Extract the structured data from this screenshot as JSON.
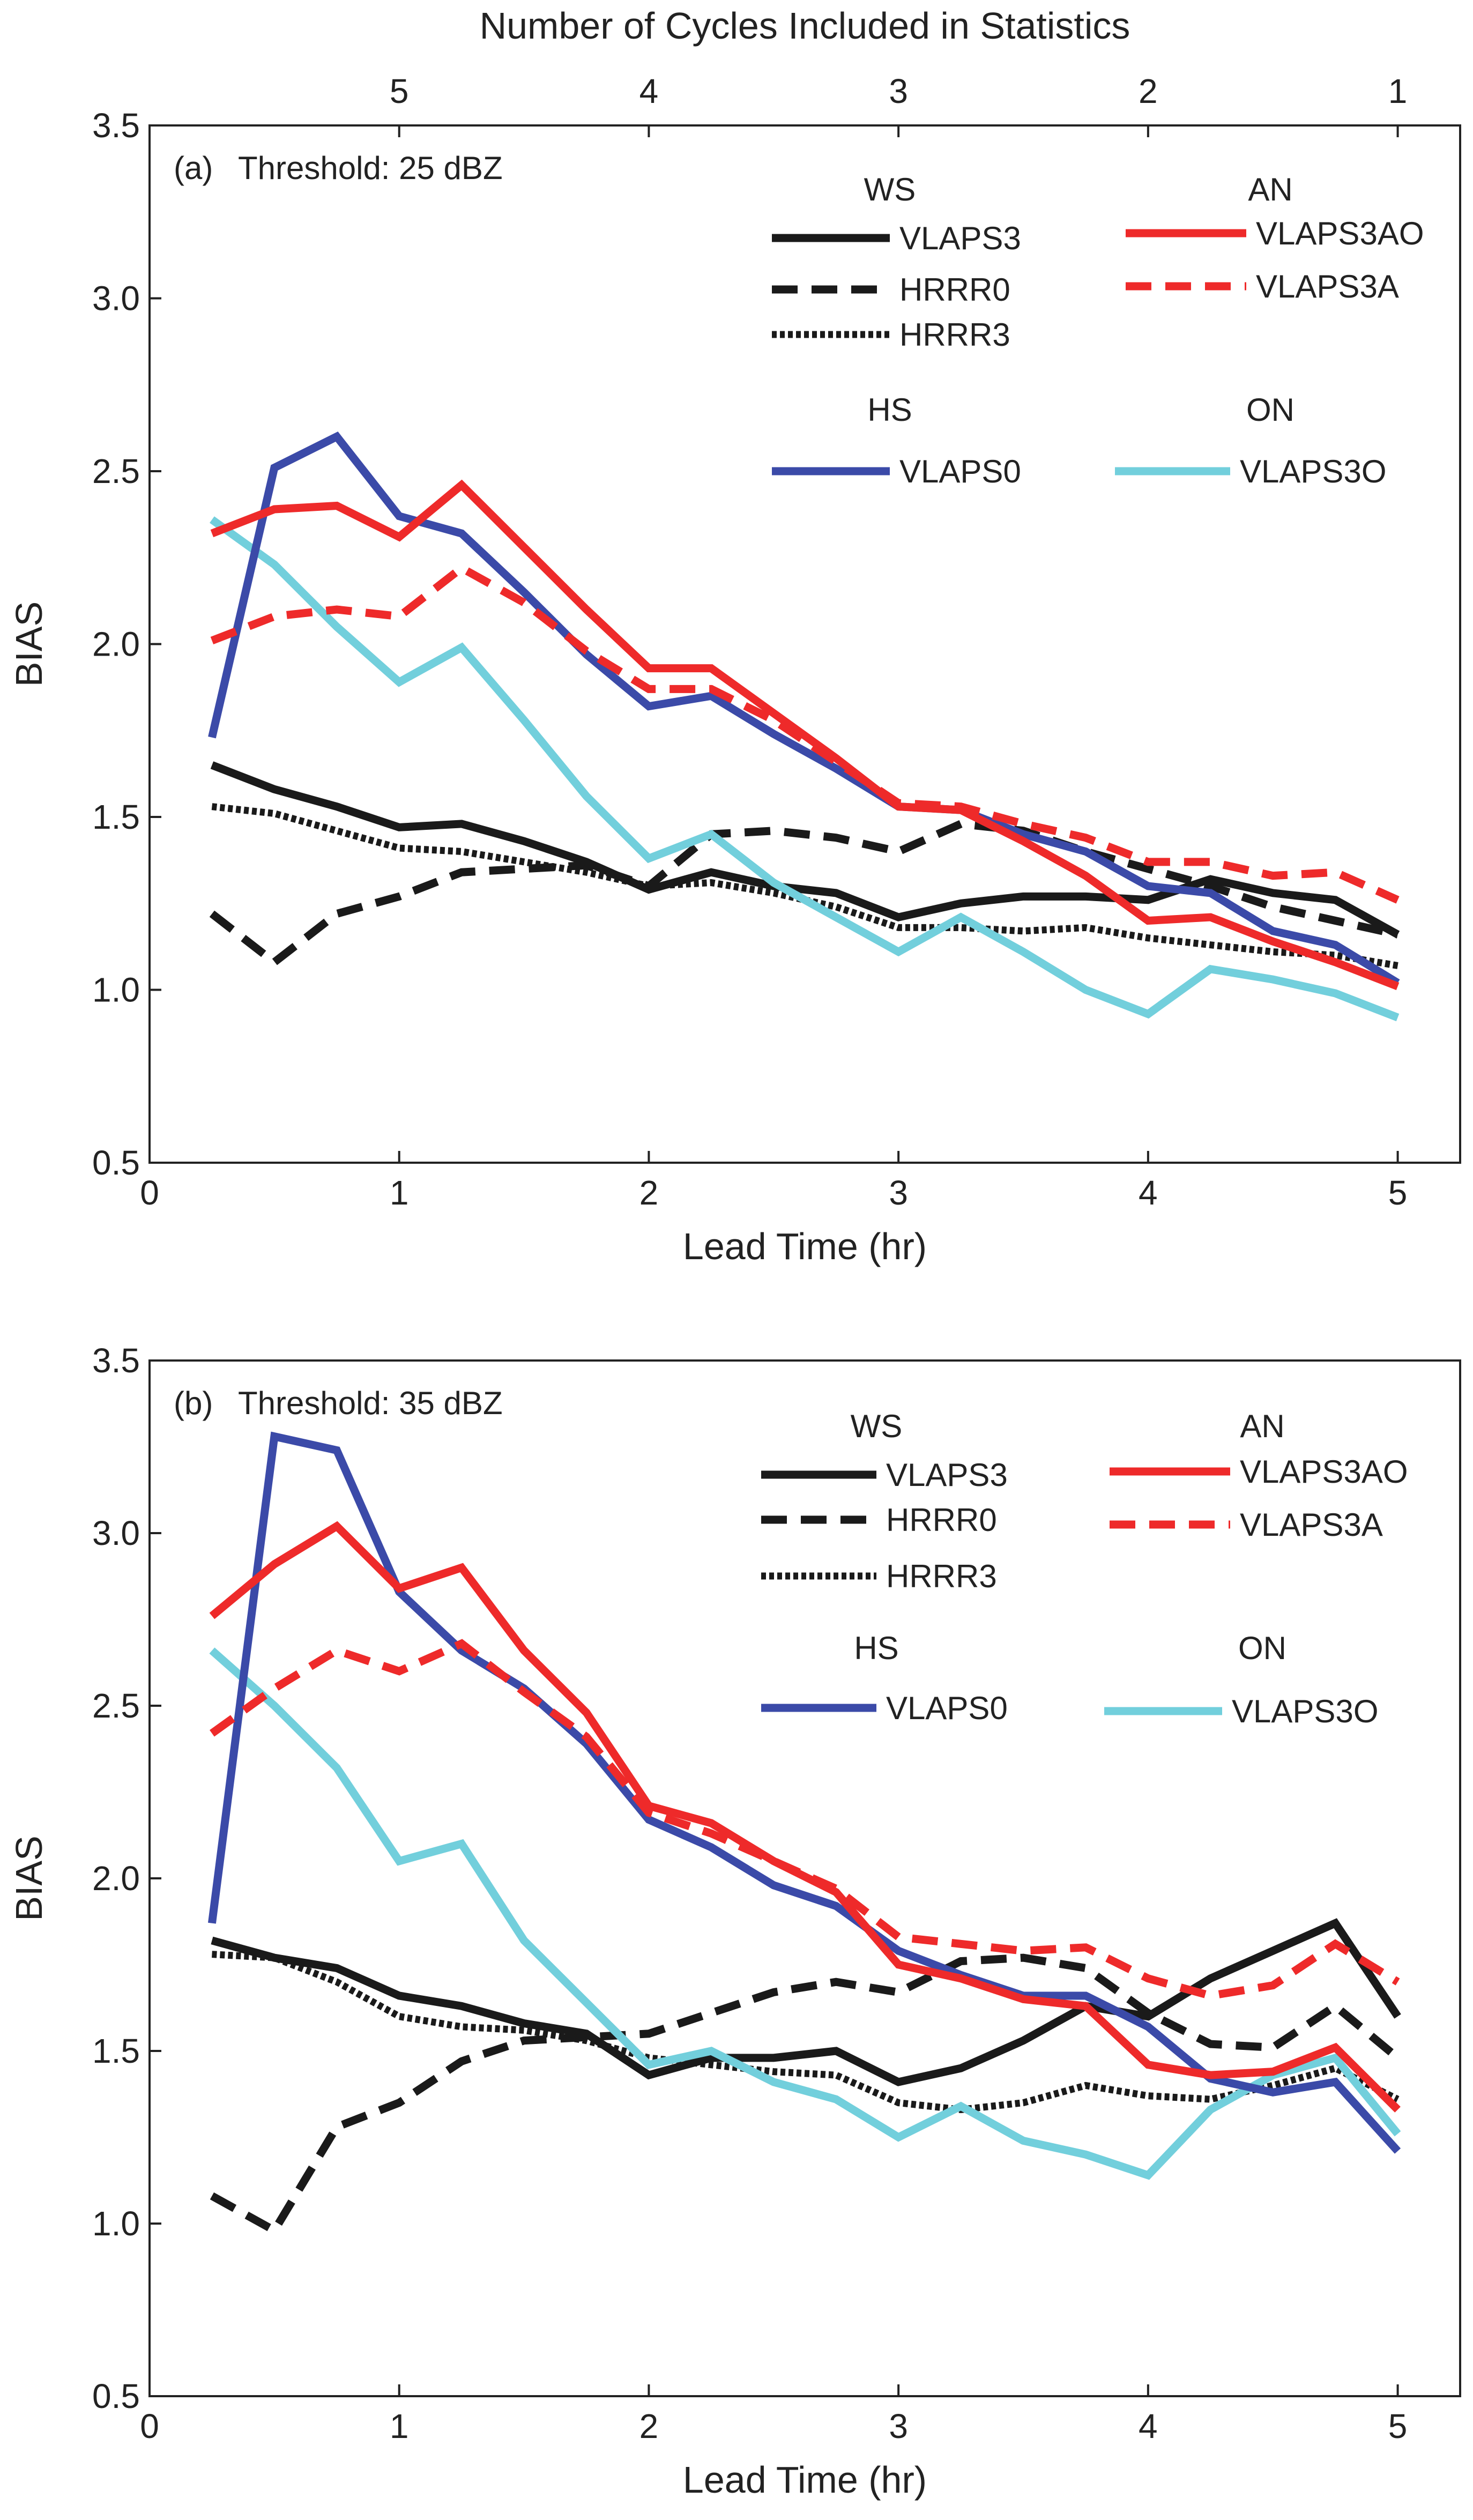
{
  "chart_data": [
    {
      "type": "line",
      "panel_label": "(a)",
      "title": "Threshold: 25 dBZ",
      "xlabel": "Lead Time (hr)",
      "ylabel": "BIAS",
      "top_xlabel": "Number of Cycles Included in Statistics",
      "top_ticks": [
        {
          "at": 1,
          "label": "5"
        },
        {
          "at": 2,
          "label": "4"
        },
        {
          "at": 3,
          "label": "3"
        },
        {
          "at": 4,
          "label": "2"
        },
        {
          "at": 5,
          "label": "1"
        }
      ],
      "xlim": [
        0,
        5.25
      ],
      "ylim": [
        0.5,
        3.5
      ],
      "xticks": [
        "0",
        "1",
        "2",
        "3",
        "4",
        "5"
      ],
      "yticks": [
        "0.5",
        "1.0",
        "1.5",
        "2.0",
        "2.5",
        "3.0",
        "3.5"
      ],
      "grid": false,
      "legend_groups": [
        "WS",
        "AN",
        "HS",
        "ON"
      ],
      "x": [
        0.25,
        0.5,
        0.75,
        1,
        1.25,
        1.5,
        1.75,
        2,
        2.25,
        2.5,
        2.75,
        3,
        3.25,
        3.5,
        3.75,
        4,
        4.25,
        4.5,
        4.75,
        5
      ],
      "series": [
        {
          "name": "VLAPS3",
          "group": "WS",
          "color": "#1a1a1a",
          "style": "solid",
          "values": [
            1.65,
            1.58,
            1.53,
            1.47,
            1.48,
            1.43,
            1.37,
            1.29,
            1.34,
            1.3,
            1.28,
            1.21,
            1.25,
            1.27,
            1.27,
            1.26,
            1.32,
            1.28,
            1.26,
            1.16
          ]
        },
        {
          "name": "HRRR0",
          "group": "WS",
          "color": "#1a1a1a",
          "style": "dashed",
          "values": [
            1.22,
            1.08,
            1.22,
            1.27,
            1.34,
            1.35,
            1.36,
            1.3,
            1.45,
            1.46,
            1.44,
            1.4,
            1.48,
            1.46,
            1.4,
            1.35,
            1.3,
            1.24,
            1.2,
            1.16
          ]
        },
        {
          "name": "HRRR3",
          "group": "WS",
          "color": "#1a1a1a",
          "style": "dotted",
          "values": [
            1.53,
            1.51,
            1.46,
            1.41,
            1.4,
            1.37,
            1.34,
            1.3,
            1.31,
            1.28,
            1.24,
            1.18,
            1.18,
            1.17,
            1.18,
            1.15,
            1.13,
            1.11,
            1.1,
            1.07
          ]
        },
        {
          "name": "VLAPS3AO",
          "group": "AN",
          "color": "#ee2a2a",
          "style": "solid",
          "values": [
            2.32,
            2.39,
            2.4,
            2.31,
            2.46,
            2.28,
            2.1,
            1.93,
            1.93,
            1.8,
            1.67,
            1.53,
            1.52,
            1.43,
            1.33,
            1.2,
            1.21,
            1.14,
            1.08,
            1.01
          ]
        },
        {
          "name": "VLAPS3A",
          "group": "AN",
          "color": "#ee2a2a",
          "style": "dashed",
          "values": [
            2.01,
            2.08,
            2.1,
            2.08,
            2.22,
            2.12,
            1.98,
            1.87,
            1.87,
            1.78,
            1.66,
            1.54,
            1.53,
            1.48,
            1.44,
            1.37,
            1.37,
            1.33,
            1.34,
            1.26
          ]
        },
        {
          "name": "VLAPS0",
          "group": "HS",
          "color": "#3b4aa8",
          "style": "solid",
          "values": [
            1.73,
            2.51,
            2.6,
            2.37,
            2.32,
            2.15,
            1.97,
            1.82,
            1.85,
            1.74,
            1.64,
            1.53,
            1.52,
            1.45,
            1.4,
            1.3,
            1.28,
            1.17,
            1.13,
            1.02
          ]
        },
        {
          "name": "VLAPS3O",
          "group": "ON",
          "color": "#72cfdc",
          "style": "solid",
          "values": [
            2.36,
            2.23,
            2.05,
            1.89,
            1.99,
            1.78,
            1.56,
            1.38,
            1.45,
            1.31,
            1.21,
            1.11,
            1.21,
            1.11,
            1.0,
            0.93,
            1.06,
            1.03,
            0.99,
            0.92
          ]
        }
      ]
    },
    {
      "type": "line",
      "panel_label": "(b)",
      "title": "Threshold: 35 dBZ",
      "xlabel": "Lead Time (hr)",
      "ylabel": "BIAS",
      "xlim": [
        0,
        5.25
      ],
      "ylim": [
        0.5,
        3.5
      ],
      "xticks": [
        "0",
        "1",
        "2",
        "3",
        "4",
        "5"
      ],
      "yticks": [
        "0.5",
        "1.0",
        "1.5",
        "2.0",
        "2.5",
        "3.0",
        "3.5"
      ],
      "grid": false,
      "legend_groups": [
        "WS",
        "AN",
        "HS",
        "ON"
      ],
      "x": [
        0.25,
        0.5,
        0.75,
        1,
        1.25,
        1.5,
        1.75,
        2,
        2.25,
        2.5,
        2.75,
        3,
        3.25,
        3.5,
        3.75,
        4,
        4.25,
        4.5,
        4.75,
        5
      ],
      "series": [
        {
          "name": "VLAPS3",
          "group": "WS",
          "color": "#1a1a1a",
          "style": "solid",
          "values": [
            1.82,
            1.77,
            1.74,
            1.66,
            1.63,
            1.58,
            1.55,
            1.43,
            1.48,
            1.48,
            1.5,
            1.41,
            1.45,
            1.53,
            1.63,
            1.6,
            1.71,
            1.79,
            1.87,
            1.6
          ]
        },
        {
          "name": "HRRR0",
          "group": "WS",
          "color": "#1a1a1a",
          "style": "dashed",
          "values": [
            1.08,
            0.98,
            1.28,
            1.35,
            1.47,
            1.53,
            1.54,
            1.55,
            1.61,
            1.67,
            1.7,
            1.67,
            1.76,
            1.77,
            1.74,
            1.61,
            1.52,
            1.51,
            1.63,
            1.48
          ]
        },
        {
          "name": "HRRR3",
          "group": "WS",
          "color": "#1a1a1a",
          "style": "dotted",
          "values": [
            1.78,
            1.77,
            1.7,
            1.6,
            1.57,
            1.56,
            1.53,
            1.48,
            1.46,
            1.44,
            1.43,
            1.35,
            1.33,
            1.35,
            1.4,
            1.37,
            1.36,
            1.4,
            1.45,
            1.36
          ]
        },
        {
          "name": "VLAPS3AO",
          "group": "AN",
          "color": "#ee2a2a",
          "style": "solid",
          "values": [
            2.76,
            2.91,
            3.02,
            2.84,
            2.9,
            2.66,
            2.48,
            2.21,
            2.16,
            2.05,
            1.96,
            1.75,
            1.71,
            1.65,
            1.63,
            1.46,
            1.43,
            1.44,
            1.51,
            1.33
          ]
        },
        {
          "name": "VLAPS3A",
          "group": "AN",
          "color": "#ee2a2a",
          "style": "dashed",
          "values": [
            2.42,
            2.55,
            2.66,
            2.6,
            2.68,
            2.54,
            2.41,
            2.19,
            2.13,
            2.05,
            1.97,
            1.83,
            1.81,
            1.79,
            1.8,
            1.71,
            1.66,
            1.69,
            1.81,
            1.7
          ]
        },
        {
          "name": "VLAPS0",
          "group": "HS",
          "color": "#3b4aa8",
          "style": "solid",
          "values": [
            1.87,
            3.28,
            3.24,
            2.83,
            2.66,
            2.55,
            2.39,
            2.17,
            2.09,
            1.98,
            1.92,
            1.79,
            1.72,
            1.66,
            1.66,
            1.57,
            1.42,
            1.38,
            1.41,
            1.21
          ]
        },
        {
          "name": "VLAPS3O",
          "group": "ON",
          "color": "#72cfdc",
          "style": "solid",
          "values": [
            2.66,
            2.5,
            2.32,
            2.05,
            2.1,
            1.82,
            1.64,
            1.46,
            1.5,
            1.41,
            1.36,
            1.25,
            1.34,
            1.24,
            1.2,
            1.14,
            1.33,
            1.43,
            1.48,
            1.26
          ]
        }
      ]
    }
  ]
}
